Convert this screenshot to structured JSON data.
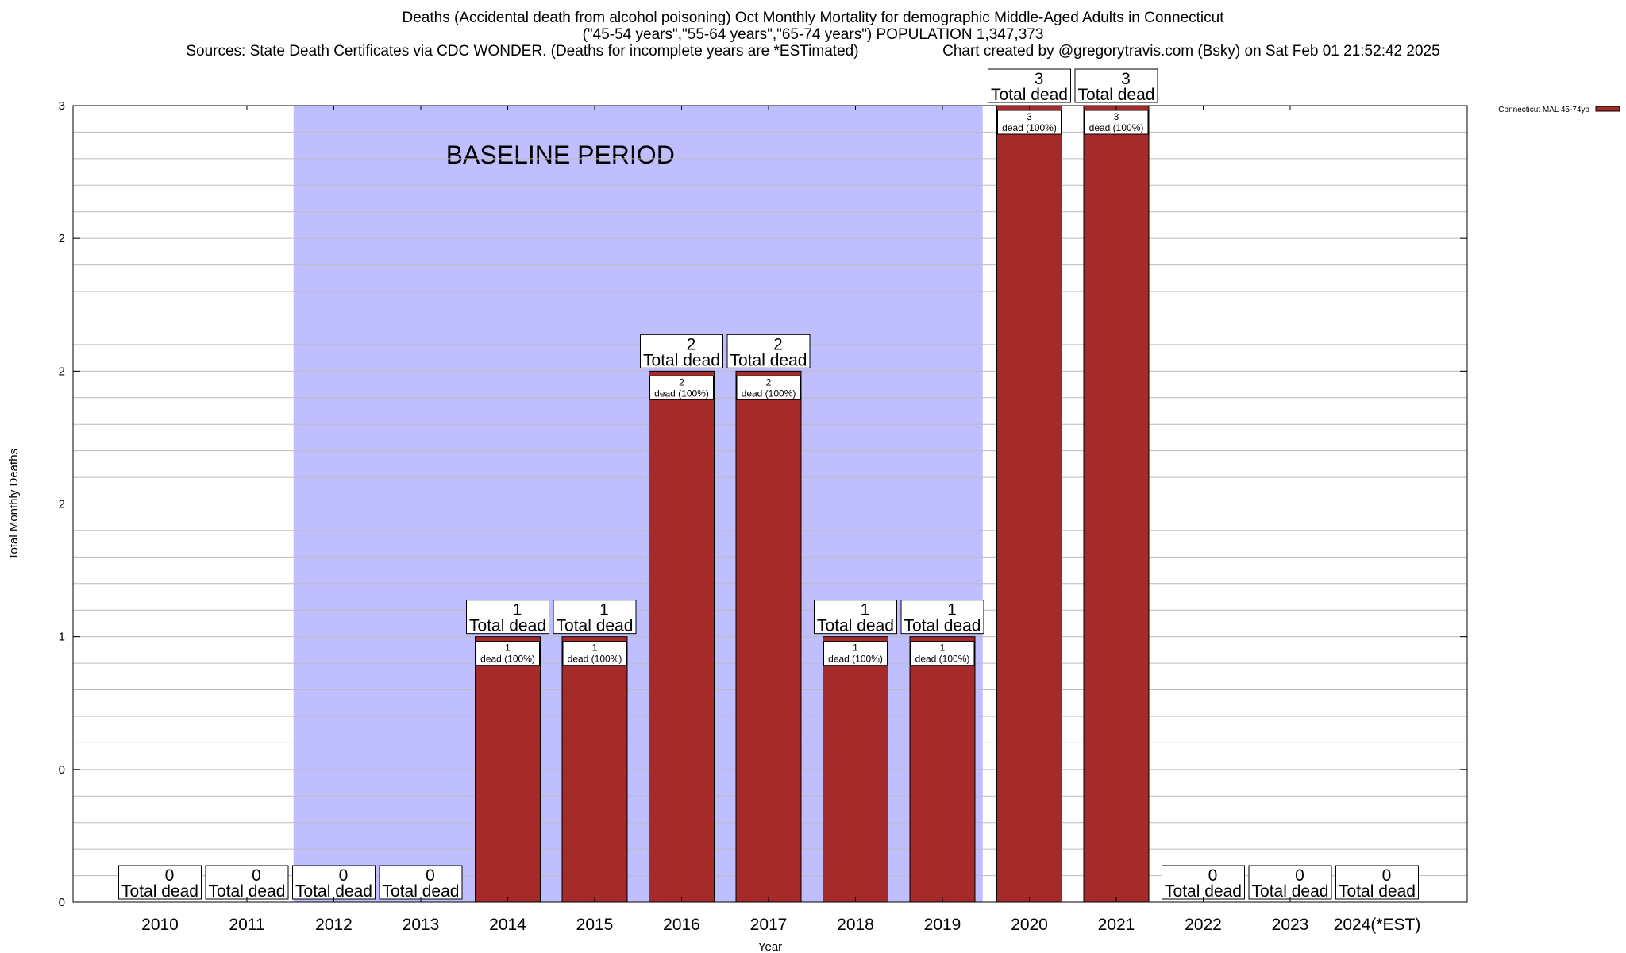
{
  "title": {
    "line1": "Deaths (Accidental death from alcohol poisoning) Oct Monthly Mortality for demographic Middle-Aged Adults in Connecticut",
    "line2": "(\"45-54 years\",\"55-64 years\",\"65-74 years\") POPULATION 1,347,373",
    "line3_left": "Sources: State Death Certificates via CDC WONDER. (Deaths for incomplete years are *ESTimated)",
    "line3_right": "Chart created by @gregorytravis.com (Bsky) on Sat Feb 01 21:52:42 2025"
  },
  "colors": {
    "bar": "#a52a2a",
    "baseline_band": "#bfbfff",
    "grid": "#bbbbbb"
  },
  "chart_data": {
    "type": "bar",
    "categories": [
      "2010",
      "2011",
      "2012",
      "2013",
      "2014",
      "2015",
      "2016",
      "2017",
      "2018",
      "2019",
      "2020",
      "2021",
      "2022",
      "2023",
      "2024(*EST)"
    ],
    "series": [
      {
        "name": "Connecticut MAL 45-74yo",
        "values": [
          0,
          0,
          0,
          0,
          1,
          1,
          2,
          2,
          1,
          1,
          3,
          3,
          0,
          0,
          0
        ]
      }
    ],
    "xlabel": "Year",
    "ylabel": "Total Monthly Deaths",
    "ylim": [
      0,
      3
    ],
    "yticks": [
      {
        "value": 0,
        "label": "0"
      },
      {
        "value": 0.5,
        "label": "0"
      },
      {
        "value": 1,
        "label": "1"
      },
      {
        "value": 1.5,
        "label": "2"
      },
      {
        "value": 2,
        "label": "2"
      },
      {
        "value": 2.5,
        "label": "2"
      },
      {
        "value": 3,
        "label": "3"
      }
    ],
    "total_label_text": "Total dead",
    "segment_label_text": "dead (100%)",
    "baseline": {
      "label": "BASELINE PERIOD",
      "start": "2012",
      "end": "2019"
    },
    "legend": {
      "placement": "top-right outside",
      "entries": [
        "Connecticut MAL 45-74yo"
      ]
    },
    "grid": true
  }
}
